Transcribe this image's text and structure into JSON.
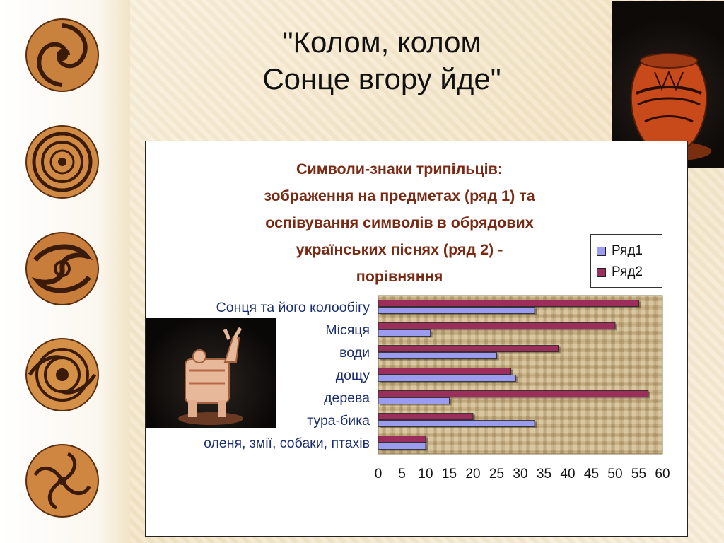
{
  "slide": {
    "title_lines": [
      "\"Колом, колом",
      "Сонце вгору йде\""
    ]
  },
  "images": {
    "medallions": [
      "spiral-ornament",
      "concentric-ornament",
      "swirl-ornament",
      "spiral-ornament",
      "wave-ornament"
    ],
    "pot": "trypillian-pot",
    "figurine": "bull-figurine"
  },
  "colors": {
    "title_text": "#111111",
    "chart_title": "#7a2a12",
    "category_text": "#1a2d6e",
    "series1": "#9a9cf0",
    "series2": "#9b2e5a",
    "plot_bg": "#c8b48c"
  },
  "chart_data": {
    "type": "bar",
    "orientation": "horizontal",
    "title_lines": [
      "Символи-знаки трипільців:",
      "зображення на предметах (ряд 1) та",
      "оспівування символів в обрядових",
      "українських піснях (ряд 2) -",
      "порівняння"
    ],
    "categories": [
      "Сонця та його колообігу",
      "Місяця",
      "води",
      "дощу",
      "дерева",
      "тура-бика",
      "оленя, змії, собаки, птахів"
    ],
    "series": [
      {
        "name": "Ряд1",
        "values": [
          33,
          11,
          25,
          29,
          15,
          33,
          10
        ]
      },
      {
        "name": "Ряд2",
        "values": [
          55,
          50,
          38,
          28,
          57,
          20,
          10
        ]
      }
    ],
    "xlim": [
      0,
      60
    ],
    "xticks": [
      "0",
      "5",
      "10",
      "15",
      "20",
      "25",
      "30",
      "35",
      "40",
      "45",
      "50",
      "55",
      "60"
    ],
    "legend_position": "right",
    "grid": false
  }
}
